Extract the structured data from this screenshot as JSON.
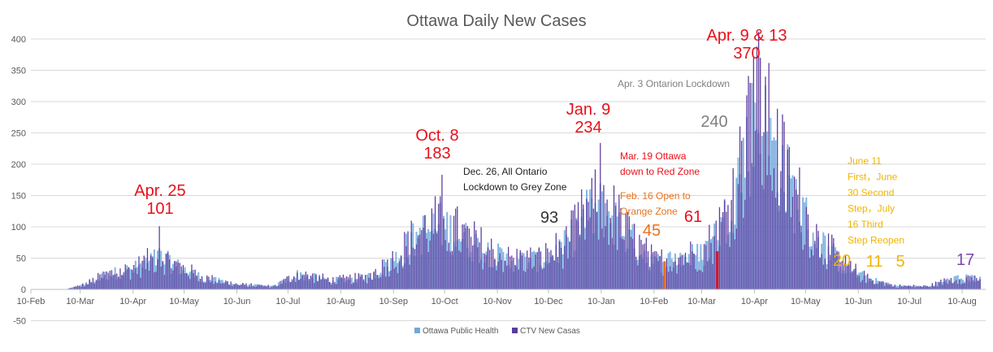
{
  "chart_data": {
    "type": "bar",
    "title": "Ottawa Daily New Cases",
    "xlabel": "",
    "ylabel": "",
    "ylim": [
      -50,
      400
    ],
    "y_ticks": [
      400,
      350,
      300,
      250,
      200,
      150,
      100,
      50,
      0,
      -50
    ],
    "x_ticks": [
      "10-Feb",
      "10-Mar",
      "10-Apr",
      "10-May",
      "10-Jun",
      "10-Jul",
      "10-Aug",
      "10-Sep",
      "10-Oct",
      "10-Nov",
      "10-Dec",
      "10-Jan",
      "10-Feb",
      "10-Mar",
      "10-Apr",
      "10-May",
      "10-Jun",
      "10-Jul",
      "10-Aug"
    ],
    "x_range": [
      "2020-02-10",
      "2021-08-20"
    ],
    "grid": "horizontal",
    "legend_position": "bottom",
    "series": [
      {
        "name": "Ottawa Public Health",
        "color": "#6fa8dc",
        "role": "back"
      },
      {
        "name": "CTV New Casas",
        "color": "#5b3a9e",
        "role": "front"
      }
    ],
    "highlight_bars": [
      {
        "date": "2021-02-16",
        "value": 45,
        "color": "#e8731e"
      },
      {
        "date": "2021-03-19",
        "value": 61,
        "color": "#e8101a"
      }
    ],
    "daily_series_note": "",
    "annotations": [
      {
        "id": "apr25",
        "lines": [
          "Apr. 25",
          "101"
        ],
        "color": "#e8101a"
      },
      {
        "id": "oct8",
        "lines": [
          "Oct. 8",
          "183"
        ],
        "color": "#e8101a"
      },
      {
        "id": "dec26",
        "lines": [
          "Dec. 26, All Ontario",
          "Lockdown to Grey Zone"
        ],
        "color": "#222222"
      },
      {
        "id": "dec-93",
        "lines": [
          "93"
        ],
        "color": "#333333"
      },
      {
        "id": "jan9",
        "lines": [
          "Jan. 9",
          "234"
        ],
        "color": "#e8101a"
      },
      {
        "id": "mar19",
        "lines": [
          "Mar. 19 Ottawa",
          "down to Red Zone"
        ],
        "color": "#e8101a"
      },
      {
        "id": "feb16",
        "lines": [
          "Feb. 16 Open to",
          "Orange Zone"
        ],
        "color": "#e8731e"
      },
      {
        "id": "feb-45",
        "lines": [
          "45"
        ],
        "color": "#e8731e"
      },
      {
        "id": "mar-61",
        "lines": [
          "61"
        ],
        "color": "#e8101a"
      },
      {
        "id": "apr3",
        "lines": [
          "Apr. 3 Ontarion Lockdown"
        ],
        "color": "#7f7f7f"
      },
      {
        "id": "apr-240",
        "lines": [
          "240"
        ],
        "color": "#7f7f7f"
      },
      {
        "id": "apr9",
        "lines": [
          "Apr. 9 & 13",
          "370"
        ],
        "color": "#e8101a"
      },
      {
        "id": "jun11",
        "lines": [
          "June 11",
          "First，June",
          "30 Second",
          "Step，July",
          "16 Third",
          "Step Reopen"
        ],
        "color": "#f0b400"
      },
      {
        "id": "jun-20",
        "lines": [
          "20"
        ],
        "color": "#f0b400"
      },
      {
        "id": "jun-11v",
        "lines": [
          "11"
        ],
        "color": "#f0b400"
      },
      {
        "id": "jul-5",
        "lines": [
          "5"
        ],
        "color": "#f0b400"
      },
      {
        "id": "aug-17",
        "lines": [
          "17"
        ],
        "color": "#7a45b0"
      }
    ]
  }
}
